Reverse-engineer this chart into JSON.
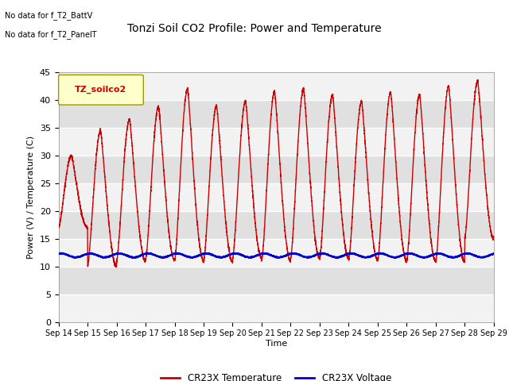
{
  "title": "Tonzi Soil CO2 Profile: Power and Temperature",
  "xlabel": "Time",
  "ylabel": "Power (V) / Temperature (C)",
  "ylim": [
    0,
    45
  ],
  "xlim": [
    0,
    15
  ],
  "xtick_labels": [
    "Sep 14",
    "Sep 15",
    "Sep 16",
    "Sep 17",
    "Sep 18",
    "Sep 19",
    "Sep 20",
    "Sep 21",
    "Sep 22",
    "Sep 23",
    "Sep 24",
    "Sep 25",
    "Sep 26",
    "Sep 27",
    "Sep 28",
    "Sep 29"
  ],
  "ytick_vals": [
    0,
    5,
    10,
    15,
    20,
    25,
    30,
    35,
    40,
    45
  ],
  "no_data_text1": "No data for f_T2_BattV",
  "no_data_text2": "No data for f_T2_PanelT",
  "legend_box_label": "TZ_soilco2",
  "legend_box_color": "#FFFFCC",
  "legend_box_edge": "#999900",
  "legend_temp_label": "CR23X Temperature",
  "legend_volt_label": "CR23X Voltage",
  "temp_color": "#CC0000",
  "volt_color": "#0000CC",
  "bg_color": "#E0E0E0",
  "band_color": "#F2F2F2",
  "volt_base": 12.0,
  "volt_amplitude": 0.35,
  "peaks": [
    30.0,
    34.5,
    36.5,
    38.8,
    42.0,
    39.0,
    39.8,
    41.5,
    42.0,
    41.0,
    39.8,
    41.5,
    41.0,
    42.5,
    43.5
  ],
  "troughs": [
    17.0,
    10.0,
    11.0,
    11.2,
    11.0,
    10.8,
    11.5,
    11.0,
    11.5,
    11.5,
    11.2,
    11.0,
    11.0,
    10.8,
    15.0
  ]
}
